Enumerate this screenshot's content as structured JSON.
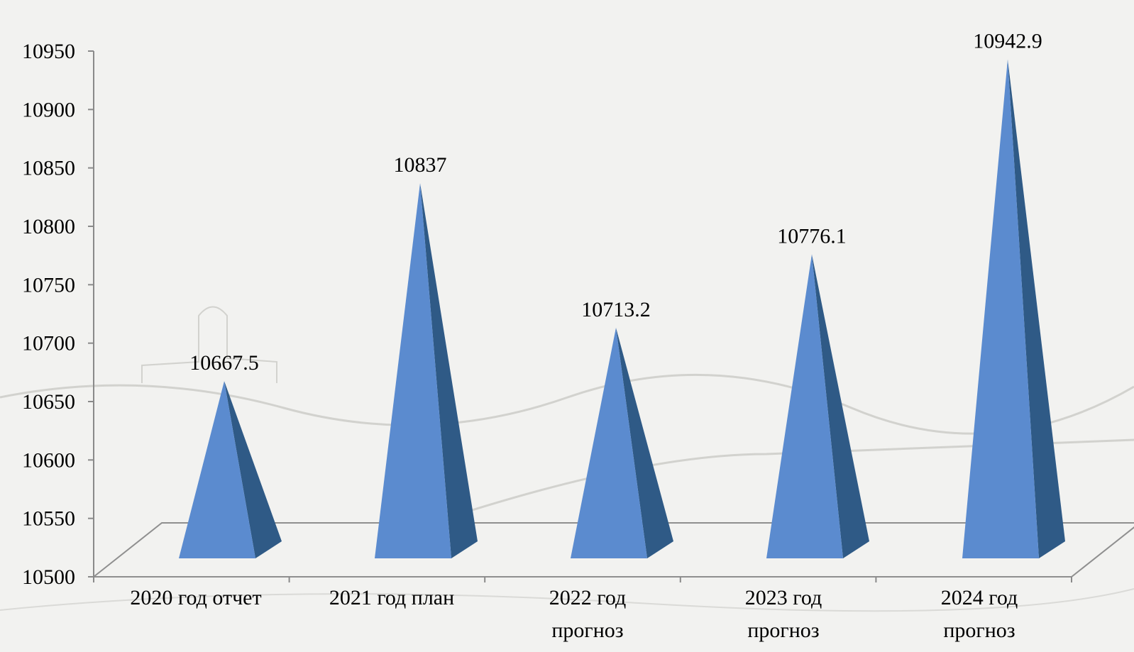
{
  "chart_data": {
    "type": "bar",
    "bar_shape": "pyramid-3d",
    "categories": [
      [
        "2020 год отчет"
      ],
      [
        "2021 год план"
      ],
      [
        "2022 год",
        "прогноз"
      ],
      [
        "2023 год",
        "прогноз"
      ],
      [
        "2024 год",
        "прогноз"
      ]
    ],
    "values": [
      10667.5,
      10837,
      10713.2,
      10776.1,
      10942.9
    ],
    "data_labels": [
      "10667.5",
      "10837",
      "10713.2",
      "10776.1",
      "10942.9"
    ],
    "ylim": [
      10500,
      10950
    ],
    "yticks": [
      10500,
      10550,
      10600,
      10650,
      10700,
      10750,
      10800,
      10850,
      10900,
      10950
    ],
    "title": "",
    "xlabel": "",
    "ylabel": "",
    "grid": false,
    "legend": "none",
    "colors": {
      "front_face": "#5b8bcf",
      "side_face": "#2f5a86",
      "axis": "#8a8a8a",
      "floor": "#8f8f8f",
      "background": "#f2f2f0",
      "sketch": "#c9c9c6"
    }
  }
}
